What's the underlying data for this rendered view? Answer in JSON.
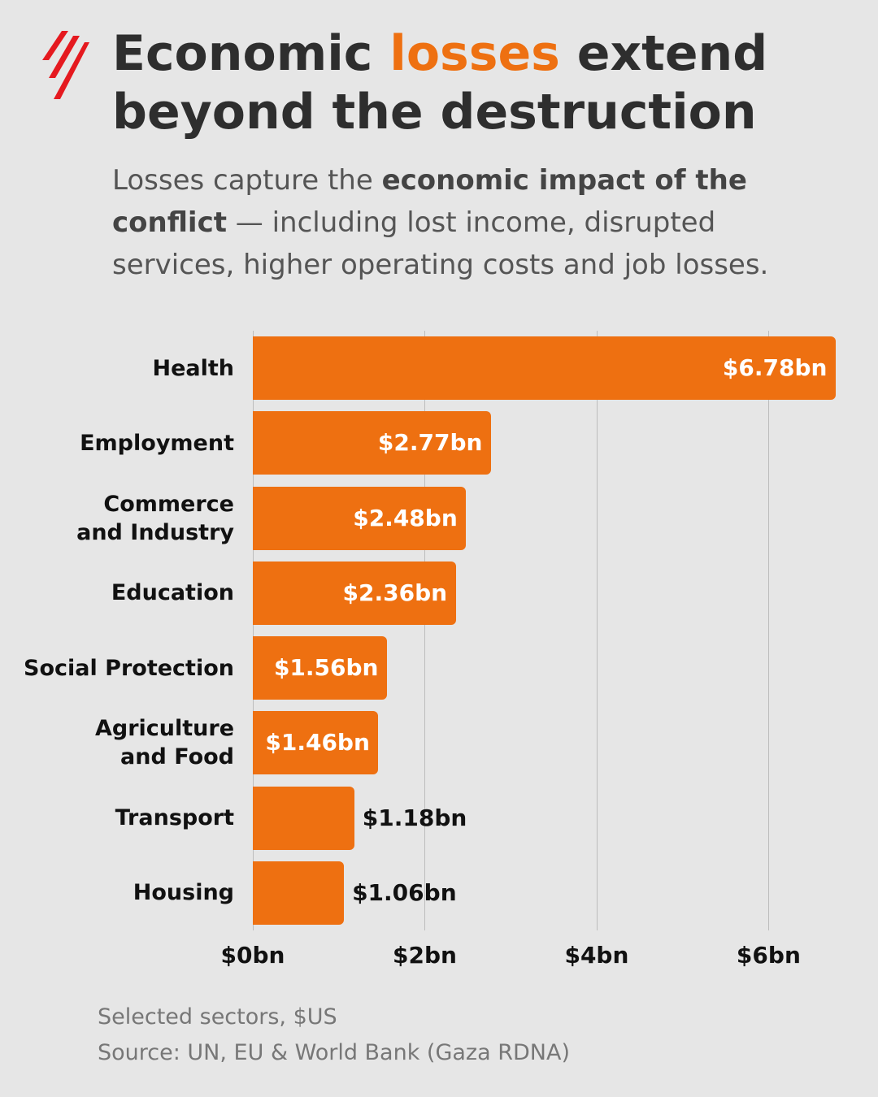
{
  "header": {
    "title_parts": [
      "Economic",
      "losses",
      "extend beyond the destruction"
    ],
    "subtitle_parts": [
      "Losses capture the",
      "economic impact of the conflict",
      "— including lost income, disrupted services, higher operating costs and job losses."
    ]
  },
  "chart_data": {
    "type": "hbar",
    "categories": [
      "Health",
      "Employment",
      "Commerce\nand Industry",
      "Education",
      "Social Protection",
      "Agriculture\nand Food",
      "Transport",
      "Housing"
    ],
    "values": [
      6.78,
      2.77,
      2.48,
      2.36,
      1.56,
      1.46,
      1.18,
      1.06
    ],
    "value_labels": [
      "$6.78bn",
      "$2.77bn",
      "$2.48bn",
      "$2.36bn",
      "$1.56bn",
      "$1.46bn",
      "$1.18bn",
      "$1.06bn"
    ],
    "color": "#ee7011",
    "xlim": [
      0,
      6.8
    ],
    "xticks": [
      {
        "value": 0,
        "label": "$0bn"
      },
      {
        "value": 2,
        "label": "$2bn"
      },
      {
        "value": 4,
        "label": "$4bn"
      },
      {
        "value": 6,
        "label": "$6bn"
      }
    ],
    "grid": true
  },
  "footer": {
    "note": "Selected sectors, $US",
    "source": "Source: UN, EU & World Bank (Gaza RDNA)"
  }
}
